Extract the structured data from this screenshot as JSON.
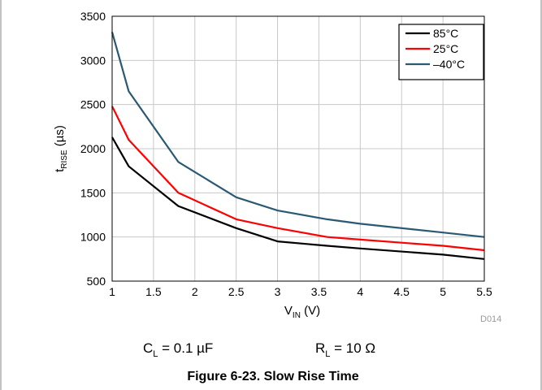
{
  "chart_data": {
    "type": "line",
    "xlabel": "V",
    "xlabel_sub": "IN",
    "xlabel_suffix": " (V)",
    "ylabel": "t",
    "ylabel_sub": "RISE",
    "ylabel_suffix": " (µs)",
    "xlim": [
      1,
      5.5
    ],
    "ylim": [
      500,
      3500
    ],
    "xticks": [
      1,
      1.5,
      2,
      2.5,
      3,
      3.5,
      4,
      4.5,
      5,
      5.5
    ],
    "xtick_labels": [
      "1",
      "1.5",
      "2",
      "2.5",
      "3",
      "3.5",
      "4",
      "4.5",
      "5",
      "5.5"
    ],
    "yticks": [
      500,
      1000,
      1500,
      2000,
      2500,
      3000,
      3500
    ],
    "ytick_labels": [
      "500",
      "1000",
      "1500",
      "2000",
      "2500",
      "3000",
      "3500"
    ],
    "grid": true,
    "legend_position": "top-right",
    "series": [
      {
        "name": "85°C",
        "color": "#000000",
        "x": [
          1,
          1.2,
          1.8,
          2.5,
          3,
          3.6,
          4,
          5,
          5.5
        ],
        "y": [
          2130,
          1800,
          1350,
          1100,
          950,
          900,
          870,
          800,
          750
        ]
      },
      {
        "name": "25°C",
        "color": "#ff0000",
        "x": [
          1,
          1.2,
          1.8,
          2.5,
          3,
          3.6,
          4,
          5,
          5.5
        ],
        "y": [
          2480,
          2100,
          1500,
          1200,
          1100,
          1000,
          970,
          900,
          850
        ]
      },
      {
        "name": "–40°C",
        "color": "#2a5a73",
        "x": [
          1,
          1.2,
          1.8,
          2.5,
          3,
          3.6,
          4,
          5,
          5.5
        ],
        "y": [
          3320,
          2650,
          1850,
          1450,
          1300,
          1200,
          1150,
          1050,
          1000
        ]
      }
    ],
    "watermark": "D014"
  },
  "conditions": {
    "cl_main": "C",
    "cl_sub": "L",
    "cl_value": " = 0.1 µF",
    "rl_main": "R",
    "rl_sub": "L",
    "rl_value": " = 10 Ω"
  },
  "caption": "Figure 6-23. Slow Rise Time"
}
